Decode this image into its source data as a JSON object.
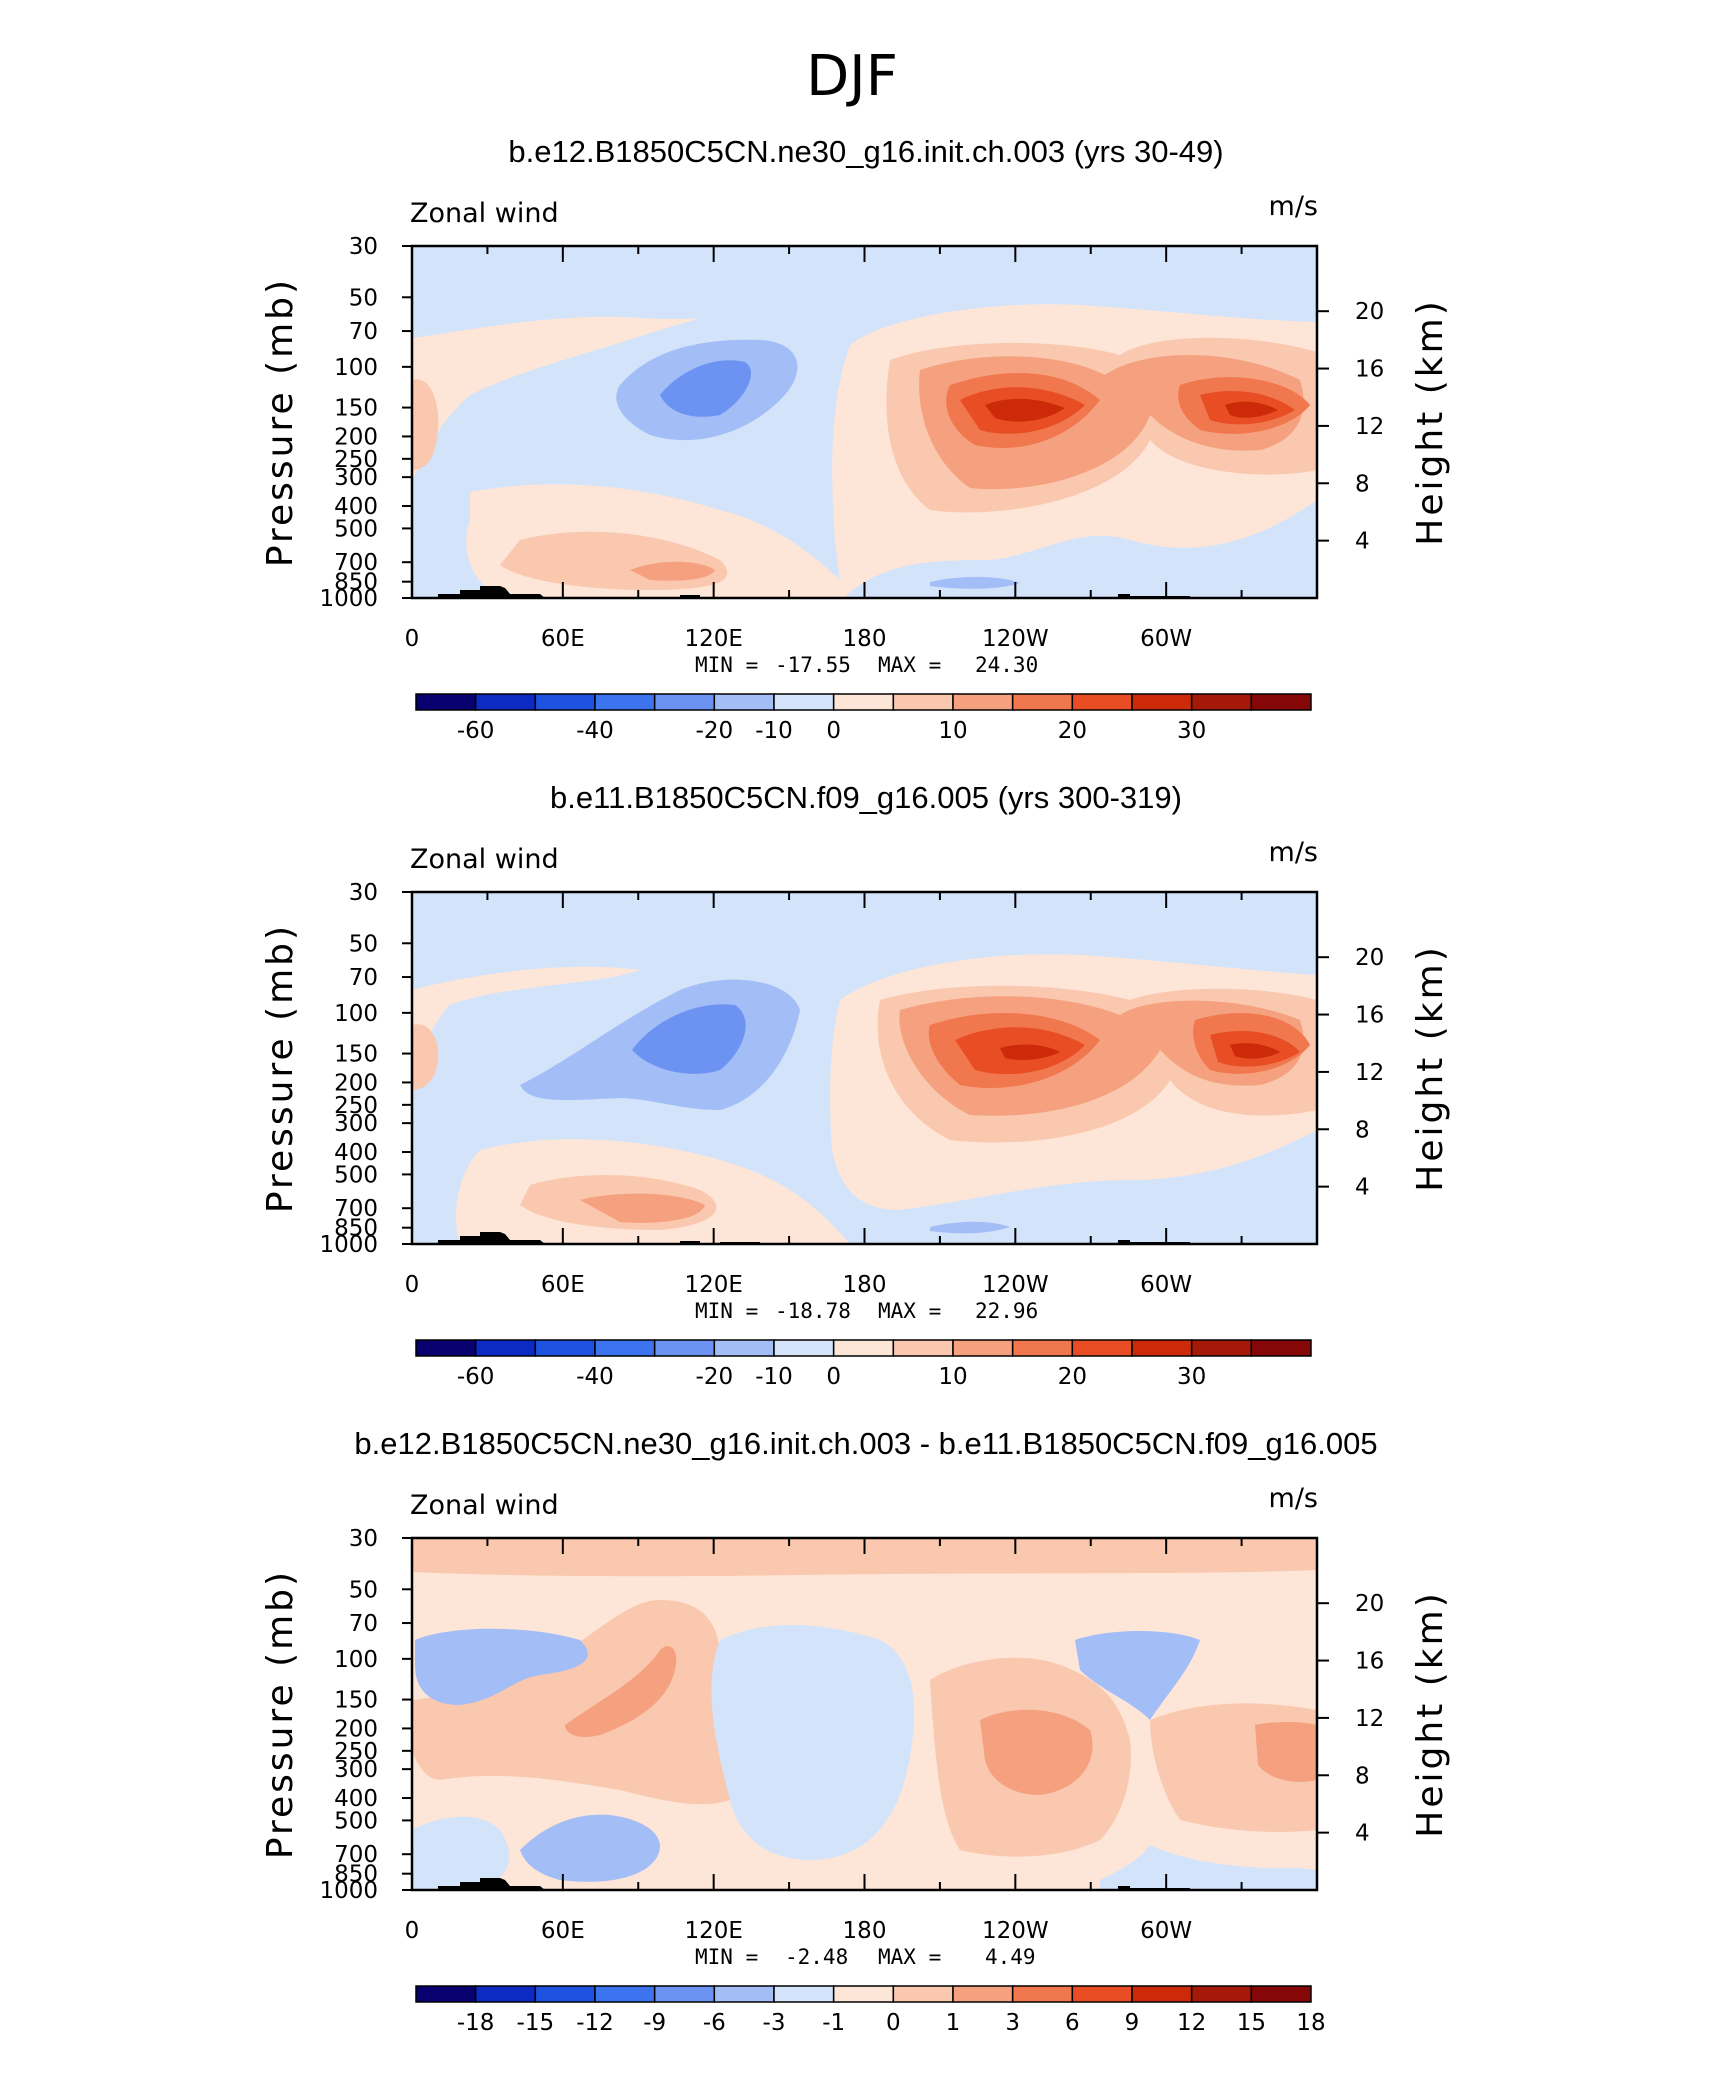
{
  "figure_title": "DJF",
  "colors": {
    "cb_standard": [
      "#08006e",
      "#0b2bc4",
      "#1e52e0",
      "#3b74ee",
      "#6c93f1",
      "#a3bdf7",
      "#d3e3fa",
      "#fde6d8",
      "#f9c8ae",
      "#f5a17f",
      "#f0774e",
      "#e84d24",
      "#cd2a0a",
      "#a5190a",
      "#860707"
    ],
    "cb_diff": [
      "#08006e",
      "#0b2bc4",
      "#1e52e0",
      "#3b74ee",
      "#6c93f1",
      "#a3bdf7",
      "#d3e3fa",
      "#fde6d8",
      "#f9c8ae",
      "#f5a17f",
      "#f0774e",
      "#e84d24",
      "#cd2a0a",
      "#a5190a",
      "#860707"
    ]
  },
  "chart_data": [
    {
      "type": "heatmap",
      "plot_kind": "contour",
      "title": "b.e12.B1850C5CN.ne30_g16.init.ch.003 (yrs 30-49)",
      "left_label": "Zonal wind",
      "right_label": "m/s",
      "ylabel": "Pressure (mb)",
      "y2label": "Height (km)",
      "x_ticks": [
        "0",
        "60E",
        "120E",
        "180",
        "120W",
        "60W"
      ],
      "y_ticks": [
        "30",
        "50",
        "70",
        "100",
        "150",
        "200",
        "250",
        "300",
        "400",
        "500",
        "700",
        "850",
        "1000"
      ],
      "y2_ticks": [
        "4",
        "8",
        "12",
        "16",
        "20"
      ],
      "stats": {
        "min_label": "MIN =",
        "min": "-17.55",
        "max_label": "MAX =",
        "max": "24.30"
      },
      "colorbar_labels": [
        "-60",
        "-40",
        "-20",
        "-10",
        "0",
        "10",
        "20",
        "30"
      ],
      "field": "standard",
      "xlim": [
        0,
        360
      ],
      "ylim": [
        1000,
        30
      ]
    },
    {
      "type": "heatmap",
      "plot_kind": "contour",
      "title": "b.e11.B1850C5CN.f09_g16.005 (yrs 300-319)",
      "left_label": "Zonal wind",
      "right_label": "m/s",
      "ylabel": "Pressure (mb)",
      "y2label": "Height (km)",
      "x_ticks": [
        "0",
        "60E",
        "120E",
        "180",
        "120W",
        "60W"
      ],
      "y_ticks": [
        "30",
        "50",
        "70",
        "100",
        "150",
        "200",
        "250",
        "300",
        "400",
        "500",
        "700",
        "850",
        "1000"
      ],
      "y2_ticks": [
        "4",
        "8",
        "12",
        "16",
        "20"
      ],
      "stats": {
        "min_label": "MIN =",
        "min": "-18.78",
        "max_label": "MAX =",
        "max": "22.96"
      },
      "colorbar_labels": [
        "-60",
        "-40",
        "-20",
        "-10",
        "0",
        "10",
        "20",
        "30"
      ],
      "field": "standard",
      "xlim": [
        0,
        360
      ],
      "ylim": [
        1000,
        30
      ]
    },
    {
      "type": "heatmap",
      "plot_kind": "contour",
      "title": "b.e12.B1850C5CN.ne30_g16.init.ch.003 - b.e11.B1850C5CN.f09_g16.005",
      "left_label": "Zonal wind",
      "right_label": "m/s",
      "ylabel": "Pressure (mb)",
      "y2label": "Height (km)",
      "x_ticks": [
        "0",
        "60E",
        "120E",
        "180",
        "120W",
        "60W"
      ],
      "y_ticks": [
        "30",
        "50",
        "70",
        "100",
        "150",
        "200",
        "250",
        "300",
        "400",
        "500",
        "700",
        "850",
        "1000"
      ],
      "y2_ticks": [
        "4",
        "8",
        "12",
        "16",
        "20"
      ],
      "stats": {
        "min_label": "MIN =",
        "min": "-2.48",
        "max_label": "MAX =",
        "max": "4.49"
      },
      "colorbar_labels": [
        "-18",
        "-15",
        "-12",
        "-9",
        "-6",
        "-3",
        "-1",
        "0",
        "1",
        "3",
        "6",
        "9",
        "12",
        "15",
        "18"
      ],
      "field": "difference",
      "xlim": [
        0,
        360
      ],
      "ylim": [
        1000,
        30
      ]
    }
  ]
}
